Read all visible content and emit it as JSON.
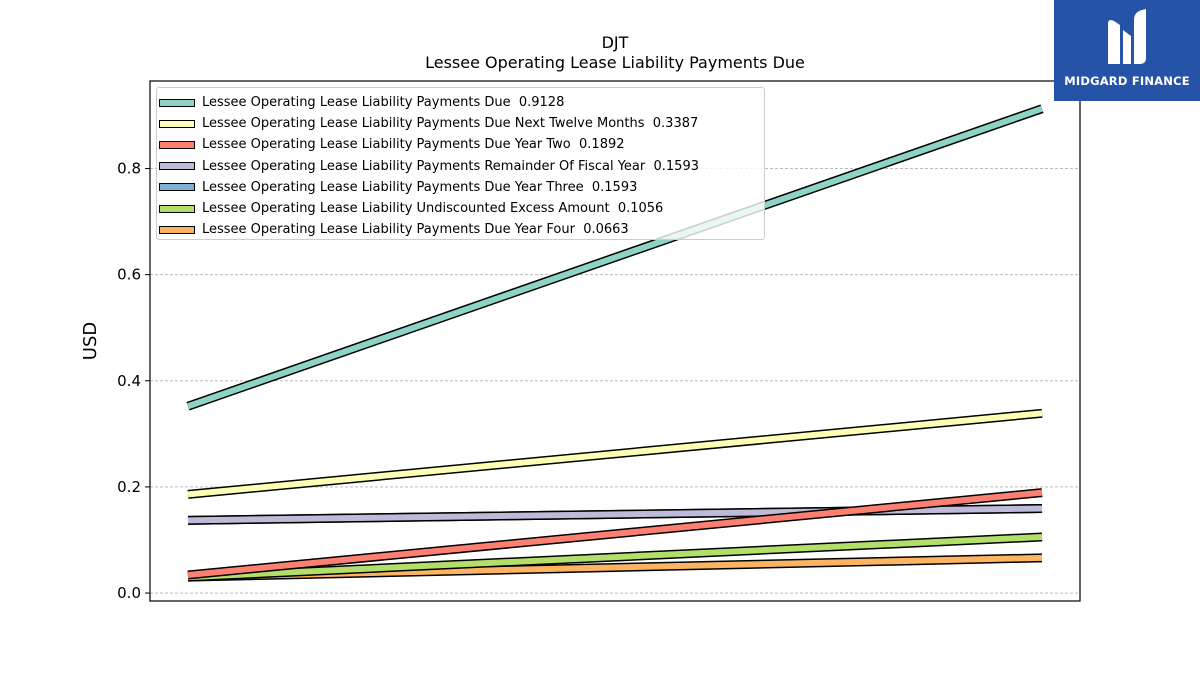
{
  "title": "DJT",
  "subtitle": "Lessee Operating Lease Liability Payments Due",
  "brand": {
    "name": "MIDGARD FINANCE",
    "logo_icon": "midgard-m-logo",
    "background": "#2553a8"
  },
  "chart_data": {
    "type": "line",
    "ylabel": "USD",
    "ylim": [
      -0.015,
      0.965
    ],
    "yticks": [
      "0.0",
      "0.2",
      "0.4",
      "0.6",
      "0.8"
    ],
    "ytick_values": [
      0.0,
      0.2,
      0.4,
      0.6,
      0.8
    ],
    "grid": true,
    "grid_axis": "y",
    "legend_position": "upper-left",
    "series": [
      {
        "name": "Lessee Operating Lease Liability Payments Due",
        "legend_value": "0.9128",
        "color": "#8dd3c7",
        "values": [
          0.352,
          0.9128
        ]
      },
      {
        "name": "Lessee Operating Lease Liability Payments Due Next Twelve Months",
        "legend_value": "0.3387",
        "color": "#ffffb3",
        "values": [
          0.186,
          0.3387
        ]
      },
      {
        "name": "Lessee Operating Lease Liability Payments Due Year Two",
        "legend_value": "0.1892",
        "color": "#fb8072",
        "values": [
          0.034,
          0.1892
        ]
      },
      {
        "name": "Lessee Operating Lease Liability Payments Remainder Of Fiscal Year",
        "legend_value": "0.1593",
        "color": "#bebada",
        "values": [
          0.137,
          0.1593
        ]
      },
      {
        "name": "Lessee Operating Lease Liability Payments Due Year Three",
        "legend_value": "0.1593",
        "color": "#80b1d3",
        "values": [
          0.137,
          0.1593
        ]
      },
      {
        "name": "Lessee Operating Lease Liability Undiscounted Excess Amount",
        "legend_value": "0.1056",
        "color": "#b3de69",
        "values": [
          0.03,
          0.1056
        ]
      },
      {
        "name": "Lessee Operating Lease Liability Payments Due Year Four",
        "legend_value": "0.0663",
        "color": "#fdb462",
        "values": [
          0.03,
          0.0663
        ]
      }
    ],
    "draw_order": [
      6,
      5,
      4,
      3,
      2,
      1,
      0
    ]
  }
}
